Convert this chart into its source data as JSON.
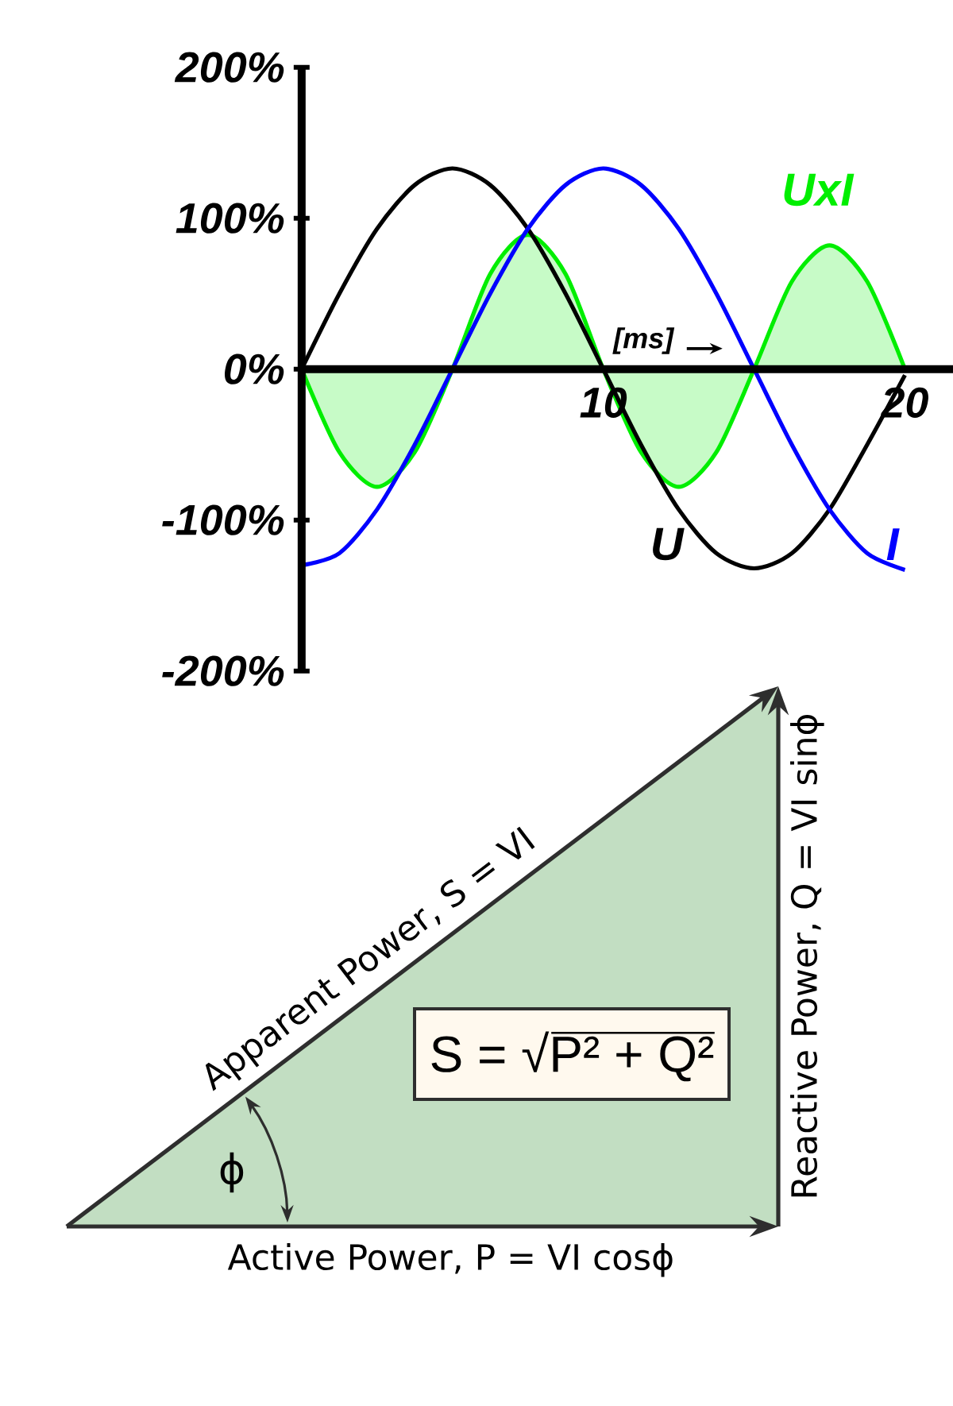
{
  "chart_data": [
    {
      "type": "line",
      "xlabel": "[ms]",
      "x": [
        0,
        1.25,
        2.5,
        3.75,
        5,
        6.25,
        7.5,
        8.75,
        10,
        11.25,
        12.5,
        13.75,
        15,
        16.25,
        17.5,
        18.75,
        20
      ],
      "xlim": [
        0,
        22.8
      ],
      "xticks": [
        10,
        20
      ],
      "ylim": [
        -200,
        200
      ],
      "yticks": [
        {
          "value": -200,
          "label": "-200%"
        },
        {
          "value": -100,
          "label": "-100%"
        },
        {
          "value": 0,
          "label": "0%"
        },
        {
          "value": 100,
          "label": "100%"
        },
        {
          "value": 200,
          "label": "200%"
        }
      ],
      "series": [
        {
          "name": "UxI",
          "type": "area",
          "color": "#00ee00",
          "values": [
            0,
            -55,
            -78,
            -55,
            0,
            63,
            89,
            63,
            0,
            -55,
            -78,
            -55,
            0,
            58,
            82,
            58,
            0
          ]
        },
        {
          "name": "U",
          "color": "#000000",
          "values": [
            0,
            50,
            93,
            122,
            133,
            122,
            93,
            50,
            0,
            -50,
            -93,
            -122,
            -132,
            -122,
            -93,
            -50,
            -4
          ]
        },
        {
          "name": "I",
          "color": "#0000ff",
          "values": [
            -130,
            -122,
            -93,
            -50,
            0,
            50,
            93,
            122,
            133,
            122,
            93,
            50,
            0,
            -50,
            -93,
            -122,
            -133
          ]
        }
      ]
    },
    {
      "type": "other",
      "annotations": [
        "Apparent Power, S = VI",
        "Reactive Power, Q = VI sinϕ",
        "Active Power, P = VI cosϕ",
        "S = √P² + Q²",
        "ϕ"
      ]
    }
  ]
}
